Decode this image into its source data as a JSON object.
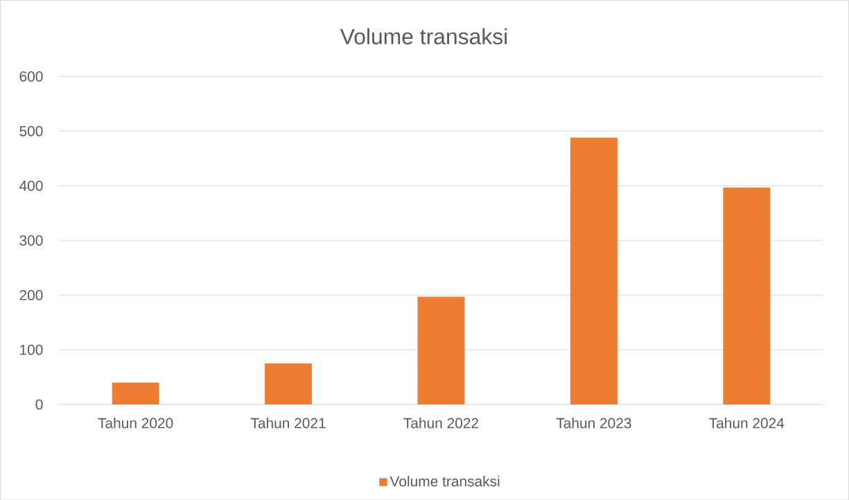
{
  "chart_data": {
    "type": "bar",
    "title": "Volume transaksi",
    "categories": [
      "Tahun 2020",
      "Tahun 2021",
      "Tahun 2022",
      "Tahun 2023",
      "Tahun 2024"
    ],
    "series": [
      {
        "name": "Volume transaksi",
        "color": "#ed7d31",
        "values": [
          40,
          75,
          197,
          488,
          397
        ]
      }
    ],
    "ylim": [
      0,
      600
    ],
    "yticks": [
      0,
      100,
      200,
      300,
      400,
      500,
      600
    ],
    "grid": "y",
    "legend": "bottom"
  }
}
